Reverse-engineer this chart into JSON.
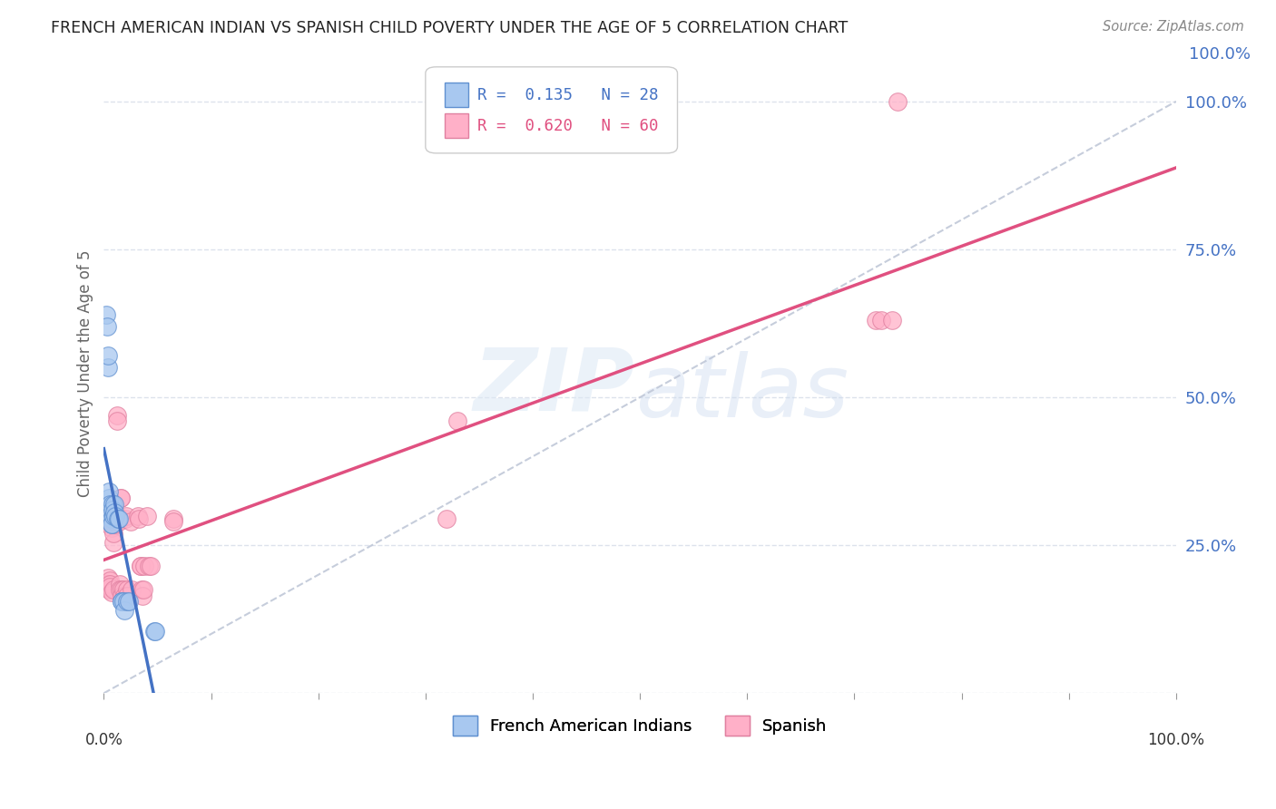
{
  "title": "FRENCH AMERICAN INDIAN VS SPANISH CHILD POVERTY UNDER THE AGE OF 5 CORRELATION CHART",
  "source": "Source: ZipAtlas.com",
  "ylabel": "Child Poverty Under the Age of 5",
  "ytick_labels": [
    "",
    "25.0%",
    "50.0%",
    "75.0%",
    "100.0%"
  ],
  "ytick_positions": [
    0.0,
    0.25,
    0.5,
    0.75,
    1.0
  ],
  "blue_line_color": "#4472c4",
  "pink_line_color": "#e05080",
  "gray_line_color": "#c0c8d8",
  "scatter_blue_color": "#a8c8f0",
  "scatter_pink_color": "#ffb0c8",
  "scatter_blue_edge": "#6090d0",
  "scatter_pink_edge": "#e080a0",
  "background_color": "#ffffff",
  "grid_color": "#dde2ec",
  "blue_scatter_x": [
    0.002,
    0.003,
    0.004,
    0.004,
    0.005,
    0.005,
    0.005,
    0.006,
    0.006,
    0.007,
    0.007,
    0.007,
    0.008,
    0.008,
    0.009,
    0.01,
    0.01,
    0.011,
    0.013,
    0.014,
    0.017,
    0.017,
    0.018,
    0.019,
    0.022,
    0.023,
    0.047,
    0.048
  ],
  "blue_scatter_y": [
    0.64,
    0.62,
    0.55,
    0.57,
    0.33,
    0.34,
    0.3,
    0.32,
    0.3,
    0.295,
    0.285,
    0.285,
    0.32,
    0.31,
    0.3,
    0.32,
    0.305,
    0.3,
    0.295,
    0.295,
    0.155,
    0.155,
    0.155,
    0.14,
    0.155,
    0.155,
    0.105,
    0.105
  ],
  "pink_scatter_x": [
    0.003,
    0.003,
    0.004,
    0.004,
    0.004,
    0.005,
    0.005,
    0.005,
    0.006,
    0.006,
    0.006,
    0.007,
    0.007,
    0.007,
    0.008,
    0.008,
    0.009,
    0.009,
    0.009,
    0.01,
    0.01,
    0.011,
    0.011,
    0.012,
    0.012,
    0.013,
    0.014,
    0.015,
    0.015,
    0.016,
    0.016,
    0.017,
    0.017,
    0.018,
    0.019,
    0.02,
    0.021,
    0.022,
    0.022,
    0.025,
    0.026,
    0.032,
    0.033,
    0.034,
    0.034,
    0.035,
    0.036,
    0.037,
    0.038,
    0.04,
    0.042,
    0.044,
    0.065,
    0.065,
    0.32,
    0.33,
    0.72,
    0.725,
    0.735,
    0.74
  ],
  "pink_scatter_y": [
    0.185,
    0.18,
    0.195,
    0.185,
    0.18,
    0.185,
    0.18,
    0.175,
    0.19,
    0.185,
    0.18,
    0.17,
    0.3,
    0.28,
    0.285,
    0.29,
    0.255,
    0.27,
    0.175,
    0.285,
    0.29,
    0.295,
    0.295,
    0.47,
    0.46,
    0.3,
    0.29,
    0.185,
    0.175,
    0.33,
    0.33,
    0.175,
    0.165,
    0.175,
    0.165,
    0.295,
    0.3,
    0.175,
    0.165,
    0.29,
    0.175,
    0.3,
    0.295,
    0.215,
    0.215,
    0.175,
    0.165,
    0.175,
    0.215,
    0.3,
    0.215,
    0.215,
    0.295,
    0.29,
    0.295,
    0.46,
    0.63,
    0.63,
    0.63,
    1.0
  ]
}
